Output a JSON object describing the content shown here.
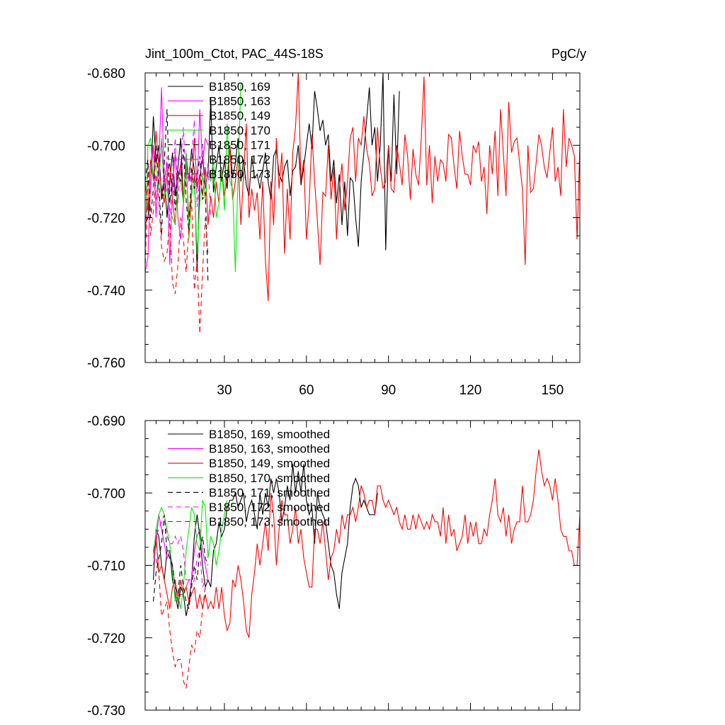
{
  "chart_data": [
    {
      "type": "line",
      "title_left": "Jint_100m_Ctot, PAC_44S-18S",
      "title_right": "PgC/y",
      "xlabel": "",
      "ylabel": "",
      "xlim": [
        1,
        160
      ],
      "ylim": [
        -0.76,
        -0.68
      ],
      "xticks": [
        30,
        60,
        90,
        120,
        150
      ],
      "xtick_labels": [
        "30",
        "60",
        "90",
        "120",
        "150"
      ],
      "yticks": [
        -0.76,
        -0.74,
        -0.72,
        -0.7,
        -0.68
      ],
      "ytick_labels": [
        "-0.760",
        "-0.740",
        "-0.720",
        "-0.700",
        "-0.680"
      ],
      "grid": false,
      "legend_position": "top-left",
      "series": [
        {
          "name": "B1850, 169",
          "color": "#000000",
          "dash": "solid",
          "x_start": 1,
          "values": [
            -0.722,
            -0.72,
            -0.712,
            -0.692,
            -0.705,
            -0.7,
            -0.715,
            -0.708,
            -0.72,
            -0.71,
            -0.702,
            -0.714,
            -0.706,
            -0.698,
            -0.716,
            -0.704,
            -0.71,
            -0.701,
            -0.707,
            -0.735,
            -0.709,
            -0.703,
            -0.712,
            -0.708,
            -0.687,
            -0.713,
            -0.706,
            -0.7,
            -0.71,
            -0.704,
            -0.712,
            -0.7,
            -0.709,
            -0.705,
            -0.698,
            -0.71,
            -0.704,
            -0.711,
            -0.714,
            -0.703,
            -0.709,
            -0.708,
            -0.712,
            -0.707,
            -0.702,
            -0.71,
            -0.715,
            -0.703,
            -0.701,
            -0.708,
            -0.71,
            -0.706,
            -0.704,
            -0.714,
            -0.707,
            -0.706,
            -0.7,
            -0.711,
            -0.706,
            -0.7,
            -0.694,
            -0.701,
            -0.685,
            -0.69,
            -0.696,
            -0.693,
            -0.7,
            -0.697,
            -0.71,
            -0.704,
            -0.716,
            -0.708,
            -0.722,
            -0.71,
            -0.725,
            -0.709,
            -0.71,
            -0.72,
            -0.728,
            -0.71,
            -0.702,
            -0.693,
            -0.684,
            -0.7,
            -0.695,
            -0.71,
            -0.7,
            -0.68,
            -0.729,
            -0.7,
            -0.71,
            -0.686,
            -0.708,
            -0.685
          ]
        },
        {
          "name": "B1850, 163",
          "color": "#ff00ff",
          "dash": "solid",
          "x_start": 1,
          "values": [
            -0.735,
            -0.731,
            -0.71,
            -0.7,
            -0.72,
            -0.705,
            -0.684,
            -0.71,
            -0.705,
            -0.733,
            -0.712,
            -0.702,
            -0.72,
            -0.726,
            -0.716,
            -0.702,
            -0.71,
            -0.708,
            -0.708,
            -0.712,
            -0.69,
            -0.705,
            -0.698,
            -0.7
          ]
        },
        {
          "name": "B1850, 149",
          "color": "#ff0000",
          "dash": "solid",
          "x_start": 1,
          "values": [
            -0.71,
            -0.718,
            -0.704,
            -0.71,
            -0.696,
            -0.706,
            -0.712,
            -0.716,
            -0.708,
            -0.705,
            -0.715,
            -0.722,
            -0.71,
            -0.705,
            -0.716,
            -0.706,
            -0.72,
            -0.712,
            -0.698,
            -0.712,
            -0.708,
            -0.714,
            -0.706,
            -0.722,
            -0.714,
            -0.72,
            -0.71,
            -0.716,
            -0.706,
            -0.714,
            -0.709,
            -0.7,
            -0.715,
            -0.71,
            -0.703,
            -0.722,
            -0.708,
            -0.694,
            -0.72,
            -0.712,
            -0.718,
            -0.713,
            -0.726,
            -0.71,
            -0.732,
            -0.743,
            -0.71,
            -0.722,
            -0.698,
            -0.712,
            -0.702,
            -0.73,
            -0.712,
            -0.726,
            -0.702,
            -0.695,
            -0.68,
            -0.71,
            -0.704,
            -0.726,
            -0.716,
            -0.697,
            -0.71,
            -0.721,
            -0.733,
            -0.713,
            -0.714,
            -0.7,
            -0.715,
            -0.706,
            -0.726,
            -0.712,
            -0.705,
            -0.718,
            -0.71,
            -0.698,
            -0.695,
            -0.71,
            -0.698,
            -0.7,
            -0.692,
            -0.701,
            -0.705,
            -0.714,
            -0.712,
            -0.695,
            -0.706,
            -0.712,
            -0.71,
            -0.7,
            -0.712,
            -0.713,
            -0.7,
            -0.705,
            -0.711,
            -0.697,
            -0.703,
            -0.715,
            -0.701,
            -0.708,
            -0.711,
            -0.698,
            -0.681,
            -0.711,
            -0.7,
            -0.716,
            -0.703,
            -0.71,
            -0.704,
            -0.705,
            -0.71,
            -0.697,
            -0.698,
            -0.706,
            -0.712,
            -0.696,
            -0.703,
            -0.708,
            -0.708,
            -0.711,
            -0.7,
            -0.702,
            -0.699,
            -0.71,
            -0.706,
            -0.719,
            -0.7,
            -0.708,
            -0.696,
            -0.714,
            -0.69,
            -0.702,
            -0.714,
            -0.688,
            -0.702,
            -0.699,
            -0.698,
            -0.705,
            -0.712,
            -0.733,
            -0.7,
            -0.713,
            -0.712,
            -0.705,
            -0.697,
            -0.7,
            -0.706,
            -0.709,
            -0.702,
            -0.695,
            -0.71,
            -0.706,
            -0.714,
            -0.69,
            -0.706,
            -0.698,
            -0.7,
            -0.703,
            -0.726,
            -0.7,
            -0.706
          ]
        },
        {
          "name": "B1850, 170",
          "color": "#00ee00",
          "dash": "solid",
          "x_start": 1,
          "values": [
            -0.73,
            -0.7,
            -0.698,
            -0.71,
            -0.705,
            -0.712,
            -0.698,
            -0.714,
            -0.712,
            -0.718,
            -0.72,
            -0.722,
            -0.708,
            -0.71,
            -0.716,
            -0.702,
            -0.726,
            -0.714,
            -0.71,
            -0.73,
            -0.716,
            -0.708,
            -0.715,
            -0.706,
            -0.71,
            -0.704,
            -0.72,
            -0.716,
            -0.706,
            -0.718,
            -0.694,
            -0.71,
            -0.712,
            -0.735,
            -0.708,
            -0.683
          ]
        },
        {
          "name": "B1850, 171",
          "color": "#000000",
          "dash": "dashed",
          "x_start": 1,
          "values": [
            -0.71,
            -0.704,
            -0.72,
            -0.712,
            -0.7,
            -0.71,
            -0.725,
            -0.705,
            -0.69,
            -0.716,
            -0.708,
            -0.718,
            -0.707,
            -0.71,
            -0.701,
            -0.715,
            -0.724,
            -0.706,
            -0.712,
            -0.709,
            -0.703,
            -0.715,
            -0.713,
            -0.738
          ]
        },
        {
          "name": "B1850, 172",
          "color": "#ff00ff",
          "dash": "dashed",
          "x_start": 1,
          "values": [
            -0.725,
            -0.71,
            -0.705,
            -0.7,
            -0.715,
            -0.708,
            -0.699,
            -0.713,
            -0.703,
            -0.72,
            -0.71,
            -0.698,
            -0.716,
            -0.705,
            -0.695,
            -0.712,
            -0.707,
            -0.704,
            -0.693,
            -0.717,
            -0.709,
            -0.7,
            -0.712,
            -0.705,
            -0.72
          ]
        },
        {
          "name": "B1850, 173",
          "color": "#ff0000",
          "dash": "dashed",
          "x_start": 1,
          "values": [
            -0.735,
            -0.706,
            -0.725,
            -0.718,
            -0.708,
            -0.715,
            -0.728,
            -0.732,
            -0.73,
            -0.72,
            -0.738,
            -0.741,
            -0.733,
            -0.72,
            -0.726,
            -0.735,
            -0.723,
            -0.715,
            -0.74,
            -0.732,
            -0.752,
            -0.735,
            -0.72,
            -0.73
          ]
        }
      ]
    },
    {
      "type": "line",
      "xlim": [
        1,
        160
      ],
      "ylim": [
        -0.73,
        -0.69
      ],
      "yticks": [
        -0.73,
        -0.72,
        -0.71,
        -0.7,
        -0.69
      ],
      "ytick_labels": [
        "-0.730",
        "-0.720",
        "-0.710",
        "-0.700",
        "-0.690"
      ],
      "grid": false,
      "legend_position": "top-left",
      "series": [
        {
          "name": "B1850, 169, smoothed",
          "color": "#000000",
          "dash": "solid",
          "x_start": 4,
          "values": [
            -0.712,
            -0.705,
            -0.706,
            -0.71,
            -0.712,
            -0.708,
            -0.708,
            -0.712,
            -0.714,
            -0.716,
            -0.713,
            -0.714,
            -0.717,
            -0.715,
            -0.712,
            -0.706,
            -0.703,
            -0.706,
            -0.71,
            -0.713,
            -0.712,
            -0.713,
            -0.708,
            -0.707,
            -0.704,
            -0.706,
            -0.705,
            -0.702,
            -0.701,
            -0.701,
            -0.7,
            -0.702,
            -0.701,
            -0.7,
            -0.704,
            -0.702,
            -0.701,
            -0.703,
            -0.705,
            -0.7,
            -0.703,
            -0.7,
            -0.702,
            -0.698,
            -0.7,
            -0.698,
            -0.7,
            -0.704,
            -0.702,
            -0.699,
            -0.701,
            -0.696,
            -0.7,
            -0.697,
            -0.7,
            -0.696,
            -0.701,
            -0.703,
            -0.702,
            -0.707,
            -0.7,
            -0.702,
            -0.703,
            -0.704,
            -0.707,
            -0.71,
            -0.711,
            -0.714,
            -0.716,
            -0.711,
            -0.709,
            -0.707,
            -0.702,
            -0.699,
            -0.698,
            -0.699,
            -0.702,
            -0.701,
            -0.702,
            -0.703,
            -0.703,
            -0.703,
            -0.7
          ]
        },
        {
          "name": "B1850, 163, smoothed",
          "color": "#ff00ff",
          "dash": "solid",
          "x_start": 4,
          "values": [
            -0.71,
            -0.707,
            -0.703,
            -0.705,
            -0.707,
            -0.709,
            -0.708,
            -0.71,
            -0.713,
            -0.715,
            -0.714,
            -0.714,
            -0.713,
            -0.712,
            -0.712,
            -0.708,
            -0.706,
            -0.705,
            -0.708,
            -0.71,
            -0.712
          ]
        },
        {
          "name": "B1850, 149, smoothed",
          "color": "#ff0000",
          "dash": "solid",
          "x_start": 4,
          "values": [
            -0.708,
            -0.706,
            -0.711,
            -0.71,
            -0.712,
            -0.714,
            -0.716,
            -0.713,
            -0.712,
            -0.715,
            -0.712,
            -0.714,
            -0.713,
            -0.715,
            -0.714,
            -0.713,
            -0.716,
            -0.714,
            -0.716,
            -0.714,
            -0.716,
            -0.715,
            -0.716,
            -0.713,
            -0.716,
            -0.713,
            -0.717,
            -0.719,
            -0.718,
            -0.712,
            -0.713,
            -0.71,
            -0.712,
            -0.715,
            -0.719,
            -0.72,
            -0.714,
            -0.711,
            -0.707,
            -0.71,
            -0.707,
            -0.704,
            -0.708,
            -0.7,
            -0.703,
            -0.71,
            -0.705,
            -0.701,
            -0.703,
            -0.703,
            -0.707,
            -0.705,
            -0.702,
            -0.707,
            -0.705,
            -0.709,
            -0.711,
            -0.713,
            -0.713,
            -0.705,
            -0.705,
            -0.707,
            -0.704,
            -0.708,
            -0.712,
            -0.709,
            -0.708,
            -0.705,
            -0.707,
            -0.703,
            -0.705,
            -0.703,
            -0.703,
            -0.702,
            -0.704,
            -0.702,
            -0.699,
            -0.7,
            -0.702,
            -0.701,
            -0.701,
            -0.703,
            -0.699,
            -0.699,
            -0.701,
            -0.702,
            -0.701,
            -0.702,
            -0.703,
            -0.702,
            -0.704,
            -0.705,
            -0.703,
            -0.705,
            -0.705,
            -0.703,
            -0.705,
            -0.703,
            -0.704,
            -0.705,
            -0.704,
            -0.705,
            -0.703,
            -0.704,
            -0.704,
            -0.706,
            -0.702,
            -0.707,
            -0.703,
            -0.706,
            -0.705,
            -0.708,
            -0.707,
            -0.706,
            -0.703,
            -0.707,
            -0.704,
            -0.706,
            -0.704,
            -0.707,
            -0.707,
            -0.705,
            -0.706,
            -0.703,
            -0.701,
            -0.698,
            -0.703,
            -0.704,
            -0.702,
            -0.706,
            -0.703,
            -0.707,
            -0.705,
            -0.704,
            -0.704,
            -0.699,
            -0.704,
            -0.704,
            -0.703,
            -0.701,
            -0.697,
            -0.694,
            -0.697,
            -0.699,
            -0.698,
            -0.699,
            -0.701,
            -0.698,
            -0.701,
            -0.705,
            -0.706,
            -0.706,
            -0.708,
            -0.708,
            -0.71,
            -0.71,
            -0.703,
            -0.7,
            -0.7,
            -0.699,
            -0.696,
            -0.696,
            -0.696,
            -0.704,
            -0.705,
            -0.706
          ]
        },
        {
          "name": "B1850, 170, smoothed",
          "color": "#00ee00",
          "dash": "solid",
          "x_start": 4,
          "values": [
            -0.709,
            -0.705,
            -0.703,
            -0.702,
            -0.703,
            -0.705,
            -0.707,
            -0.711,
            -0.715,
            -0.714,
            -0.716,
            -0.713,
            -0.708,
            -0.705,
            -0.702,
            -0.703,
            -0.707,
            -0.708,
            -0.701,
            -0.702,
            -0.709,
            -0.706,
            -0.707,
            -0.71,
            -0.708,
            -0.705,
            -0.703,
            -0.701
          ]
        },
        {
          "name": "B1850, 171, smoothed",
          "color": "#000000",
          "dash": "dashed",
          "x_start": 4,
          "values": [
            -0.715,
            -0.711,
            -0.709,
            -0.707,
            -0.703,
            -0.708,
            -0.709,
            -0.71,
            -0.713,
            -0.714,
            -0.71,
            -0.713,
            -0.715,
            -0.716,
            -0.713,
            -0.71,
            -0.712,
            -0.708,
            -0.706,
            -0.709,
            -0.71
          ]
        },
        {
          "name": "B1850, 172, smoothed",
          "color": "#ff00ff",
          "dash": "dashed",
          "x_start": 4,
          "values": [
            -0.708,
            -0.706,
            -0.705,
            -0.704,
            -0.703,
            -0.706,
            -0.707,
            -0.707,
            -0.706,
            -0.707,
            -0.706,
            -0.708,
            -0.712,
            -0.712,
            -0.713,
            -0.712,
            -0.709,
            -0.708,
            -0.713,
            -0.712,
            -0.712
          ]
        },
        {
          "name": "B1850, 173, smoothed",
          "color": "#ff0000",
          "dash": "dashed",
          "x_start": 4,
          "values": [
            -0.708,
            -0.709,
            -0.711,
            -0.717,
            -0.716,
            -0.715,
            -0.719,
            -0.722,
            -0.724,
            -0.723,
            -0.723,
            -0.726,
            -0.727,
            -0.724,
            -0.721,
            -0.722,
            -0.719,
            -0.72,
            -0.716,
            -0.713
          ]
        }
      ]
    }
  ]
}
